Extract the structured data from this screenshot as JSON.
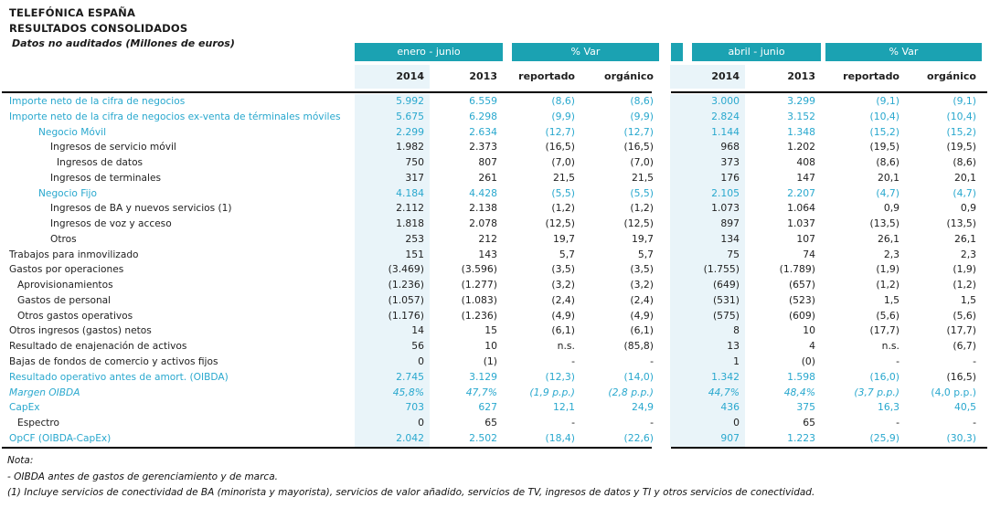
{
  "header": {
    "title": "TELEFÓNICA ESPAÑA",
    "subtitle": "RESULTADOS CONSOLIDADOS",
    "note": "Datos no auditados (Millones de euros)"
  },
  "colors": {
    "teal_bar": "#1ba2b2",
    "teal_text": "#29a8ce",
    "highlight_column": "#e9f4f9"
  },
  "table": {
    "groups": [
      {
        "label": "enero - junio"
      },
      {
        "label": "% Var"
      },
      {
        "label": "abril - junio"
      },
      {
        "label": "% Var"
      }
    ],
    "columns": [
      "2014",
      "2013",
      "reportado",
      "orgánico",
      "2014",
      "2013",
      "reportado",
      "orgánico"
    ],
    "rows": [
      {
        "label": "Importe neto de la cifra de negocios",
        "indent": 0,
        "tone": "teal",
        "italic": false,
        "values": [
          "5.992",
          "6.559",
          "(8,6)",
          "(8,6)",
          "3.000",
          "3.299",
          "(9,1)",
          "(9,1)"
        ]
      },
      {
        "label": "Importe neto de la cifra de negocios ex-venta de términales móviles",
        "indent": 0,
        "tone": "teal",
        "italic": false,
        "values": [
          "5.675",
          "6.298",
          "(9,9)",
          "(9,9)",
          "2.824",
          "3.152",
          "(10,4)",
          "(10,4)"
        ]
      },
      {
        "label": "Negocio Móvil",
        "indent": 2,
        "tone": "teal",
        "italic": false,
        "values": [
          "2.299",
          "2.634",
          "(12,7)",
          "(12,7)",
          "1.144",
          "1.348",
          "(15,2)",
          "(15,2)"
        ]
      },
      {
        "label": "Ingresos de servicio móvil",
        "indent": 3,
        "tone": "dark",
        "italic": false,
        "values": [
          "1.982",
          "2.373",
          "(16,5)",
          "(16,5)",
          "968",
          "1.202",
          "(19,5)",
          "(19,5)"
        ]
      },
      {
        "label": "Ingresos de datos",
        "indent": 4,
        "tone": "dark",
        "italic": false,
        "values": [
          "750",
          "807",
          "(7,0)",
          "(7,0)",
          "373",
          "408",
          "(8,6)",
          "(8,6)"
        ]
      },
      {
        "label": "Ingresos de terminales",
        "indent": 3,
        "tone": "dark",
        "italic": false,
        "values": [
          "317",
          "261",
          "21,5",
          "21,5",
          "176",
          "147",
          "20,1",
          "20,1"
        ]
      },
      {
        "label": "Negocio Fijo",
        "indent": 2,
        "tone": "teal",
        "italic": false,
        "values": [
          "4.184",
          "4.428",
          "(5,5)",
          "(5,5)",
          "2.105",
          "2.207",
          "(4,7)",
          "(4,7)"
        ]
      },
      {
        "label": "Ingresos de BA y nuevos servicios (1)",
        "indent": 3,
        "tone": "dark",
        "italic": false,
        "values": [
          "2.112",
          "2.138",
          "(1,2)",
          "(1,2)",
          "1.073",
          "1.064",
          "0,9",
          "0,9"
        ]
      },
      {
        "label": "Ingresos de voz y acceso",
        "indent": 3,
        "tone": "dark",
        "italic": false,
        "values": [
          "1.818",
          "2.078",
          "(12,5)",
          "(12,5)",
          "897",
          "1.037",
          "(13,5)",
          "(13,5)"
        ]
      },
      {
        "label": "Otros",
        "indent": 3,
        "tone": "dark",
        "italic": false,
        "values": [
          "253",
          "212",
          "19,7",
          "19,7",
          "134",
          "107",
          "26,1",
          "26,1"
        ]
      },
      {
        "label": "Trabajos para inmovilizado",
        "indent": 0,
        "tone": "dark",
        "italic": false,
        "values": [
          "151",
          "143",
          "5,7",
          "5,7",
          "75",
          "74",
          "2,3",
          "2,3"
        ]
      },
      {
        "label": "Gastos por operaciones",
        "indent": 0,
        "tone": "dark",
        "italic": false,
        "values": [
          "(3.469)",
          "(3.596)",
          "(3,5)",
          "(3,5)",
          "(1.755)",
          "(1.789)",
          "(1,9)",
          "(1,9)"
        ]
      },
      {
        "label": "Aprovisionamientos",
        "indent": 1,
        "tone": "dark",
        "italic": false,
        "values": [
          "(1.236)",
          "(1.277)",
          "(3,2)",
          "(3,2)",
          "(649)",
          "(657)",
          "(1,2)",
          "(1,2)"
        ]
      },
      {
        "label": "Gastos de personal",
        "indent": 1,
        "tone": "dark",
        "italic": false,
        "values": [
          "(1.057)",
          "(1.083)",
          "(2,4)",
          "(2,4)",
          "(531)",
          "(523)",
          "1,5",
          "1,5"
        ]
      },
      {
        "label": "Otros gastos operativos",
        "indent": 1,
        "tone": "dark",
        "italic": false,
        "values": [
          "(1.176)",
          "(1.236)",
          "(4,9)",
          "(4,9)",
          "(575)",
          "(609)",
          "(5,6)",
          "(5,6)"
        ]
      },
      {
        "label": "Otros ingresos (gastos) netos",
        "indent": 0,
        "tone": "dark",
        "italic": false,
        "values": [
          "14",
          "15",
          "(6,1)",
          "(6,1)",
          "8",
          "10",
          "(17,7)",
          "(17,7)"
        ]
      },
      {
        "label": "Resultado de enajenación de activos",
        "indent": 0,
        "tone": "dark",
        "italic": false,
        "values": [
          "56",
          "10",
          "n.s.",
          "(85,8)",
          "13",
          "4",
          "n.s.",
          "(6,7)"
        ]
      },
      {
        "label": "Bajas de fondos de comercio y activos fijos",
        "indent": 0,
        "tone": "dark",
        "italic": false,
        "values": [
          "0",
          "(1)",
          "-",
          "-",
          "1",
          "(0)",
          "-",
          "-"
        ]
      },
      {
        "label": "Resultado operativo antes de amort. (OIBDA)",
        "indent": 0,
        "tone": "teal",
        "italic": false,
        "values": [
          "2.745",
          "3.129",
          "(12,3)",
          "(14,0)",
          "1.342",
          "1.598",
          "(16,0)",
          "(16,5)"
        ],
        "overrides": [
          {
            "index": 7,
            "tone": "dark"
          }
        ]
      },
      {
        "label": "Margen OIBDA",
        "indent": 0,
        "tone": "teal",
        "italic": true,
        "values": [
          "45,8%",
          "47,7%",
          "(1,9 p.p.)",
          "(2,8 p.p.)",
          "44,7%",
          "48,4%",
          "(3,7 p.p.)",
          "(4,0 p.p.)"
        ],
        "overrides": [
          {
            "index": 7,
            "italic": false
          }
        ]
      },
      {
        "label": "CapEx",
        "indent": 0,
        "tone": "teal",
        "italic": false,
        "values": [
          "703",
          "627",
          "12,1",
          "24,9",
          "436",
          "375",
          "16,3",
          "40,5"
        ]
      },
      {
        "label": "Espectro",
        "indent": 1,
        "tone": "dark",
        "italic": false,
        "values": [
          "0",
          "65",
          "-",
          "-",
          "0",
          "65",
          "-",
          "-"
        ]
      },
      {
        "label": "OpCF (OIBDA-CapEx)",
        "indent": 0,
        "tone": "teal",
        "italic": false,
        "values": [
          "2.042",
          "2.502",
          "(18,4)",
          "(22,6)",
          "907",
          "1.223",
          "(25,9)",
          "(30,3)"
        ]
      }
    ]
  },
  "footnotes": {
    "label": "Nota:",
    "items": [
      "- OIBDA antes de gastos de gerenciamiento y de marca.",
      "(1) Incluye servicios de conectividad de BA (minorista y mayorista), servicios de valor añadido, servicios de TV, ingresos de datos y TI y otros servicios de conectividad."
    ]
  }
}
